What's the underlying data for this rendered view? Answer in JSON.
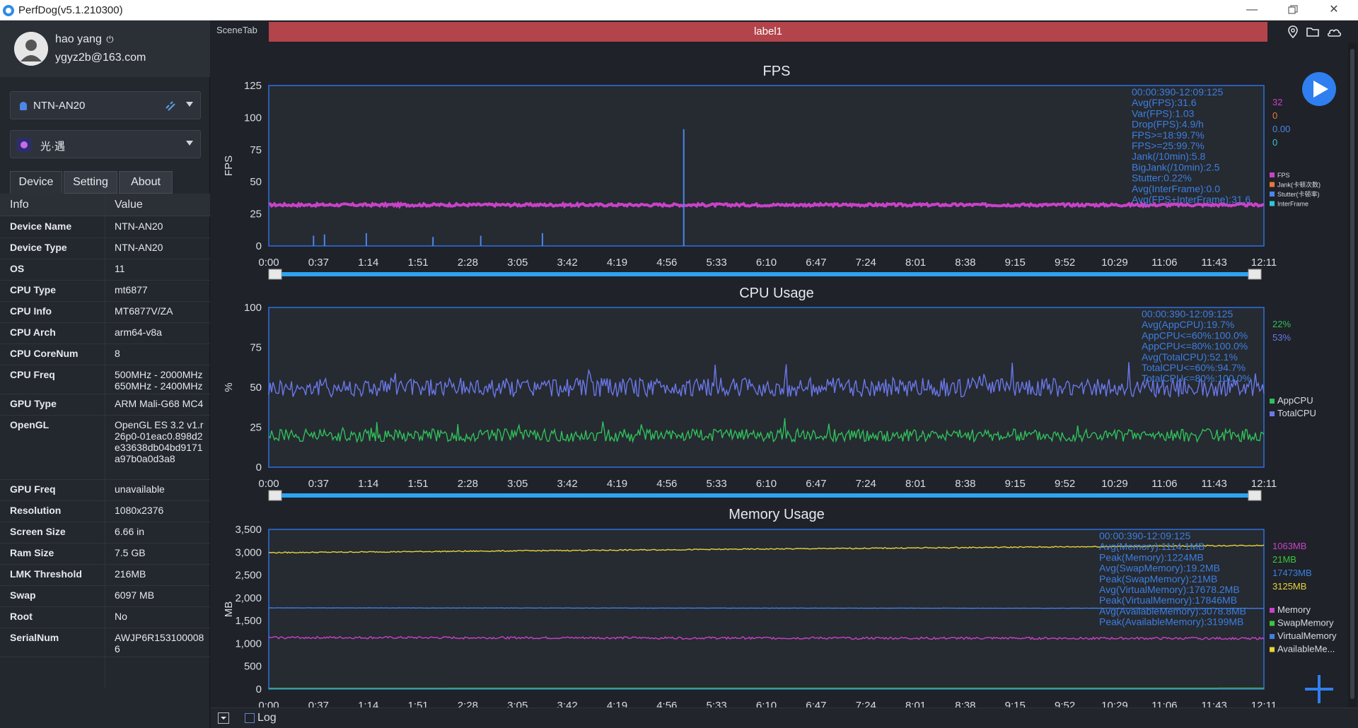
{
  "window": {
    "title": "PerfDog(v5.1.210300)",
    "minimize_icon": "minimize-icon",
    "restore_icon": "restore-icon",
    "close_icon": "close-icon"
  },
  "user": {
    "name": "hao yang",
    "email": "ygyz2b@163.com"
  },
  "device_select": {
    "value": "NTN-AN20"
  },
  "app_select": {
    "value": "光·遇"
  },
  "tabs": [
    {
      "label": "Device"
    },
    {
      "label": "Setting"
    },
    {
      "label": "About"
    }
  ],
  "info_table": {
    "headers": [
      "Info",
      "Value"
    ],
    "rows": [
      {
        "key": "Device Name",
        "value": "NTN-AN20"
      },
      {
        "key": "Device Type",
        "value": "NTN-AN20"
      },
      {
        "key": "OS",
        "value": "11"
      },
      {
        "key": "CPU Type",
        "value": "mt6877"
      },
      {
        "key": "CPU Info",
        "value": "MT6877V/ZA"
      },
      {
        "key": "CPU Arch",
        "value": "arm64-v8a"
      },
      {
        "key": "CPU CoreNum",
        "value": "8"
      },
      {
        "key": "CPU Freq",
        "value": "500MHz - 2000MHz 650MHz - 2400MHz"
      },
      {
        "key": "GPU Type",
        "value": "ARM Mali-G68 MC4"
      },
      {
        "key": "OpenGL",
        "value": "OpenGL ES 3.2 v1.r26p0-01eac0.898d2e33638db04bd9171a97b0a0d3a8"
      },
      {
        "key": "GPU Freq",
        "value": "unavailable"
      },
      {
        "key": "Resolution",
        "value": "1080x2376"
      },
      {
        "key": "Screen Size",
        "value": "6.66 in"
      },
      {
        "key": "Ram Size",
        "value": "7.5 GB"
      },
      {
        "key": "LMK Threshold",
        "value": "216MB"
      },
      {
        "key": "Swap",
        "value": "6097 MB"
      },
      {
        "key": "Root",
        "value": "No"
      },
      {
        "key": "SerialNum",
        "value": "AWJP6R1531000086"
      }
    ]
  },
  "scene": {
    "tab_label": "SceneTab",
    "label": "label1"
  },
  "bottom": {
    "log_label": "Log"
  },
  "colors": {
    "fps": "#c842c8",
    "jank": "#e8783a",
    "stutter": "#4c86e8",
    "interframe": "#2ec8d8",
    "appcpu": "#2fbf5a",
    "totalcpu": "#6a78e8",
    "memory": "#c842c8",
    "swap": "#3ec43e",
    "virtual": "#3d7fe0",
    "available": "#e8d23a",
    "stats_text": "#3d7fe0",
    "axis": "#2f6fe0",
    "slider": "#2ea3f2",
    "label_bar": "#b3444b"
  },
  "chart_data": [
    {
      "type": "line",
      "title": "FPS",
      "ylabel": "FPS",
      "ylim": [
        0,
        125
      ],
      "yticks": [
        0,
        25,
        50,
        75,
        100,
        125
      ],
      "xticks": [
        "0:00",
        "0:37",
        "1:14",
        "1:51",
        "2:28",
        "3:05",
        "3:42",
        "4:19",
        "4:56",
        "5:33",
        "6:10",
        "6:47",
        "7:24",
        "8:01",
        "8:38",
        "9:15",
        "9:52",
        "10:29",
        "11:06",
        "11:43",
        "12:11"
      ],
      "stats": [
        "00:00:390-12:09:125",
        "Avg(FPS):31.6",
        "Var(FPS):1.03",
        "Drop(FPS):4.9/h",
        "FPS>=18:99.7%",
        "FPS>=25:99.7%",
        "Jank(/10min):5.8",
        "BigJank(/10min):2.5",
        "Stutter:0.22%",
        "Avg(InterFrame):0.0",
        "Avg(FPS+InterFrame):31.6"
      ],
      "current_values": [
        {
          "text": "32",
          "color": "#c842c8"
        },
        {
          "text": "0",
          "color": "#e8783a"
        },
        {
          "text": "0.00",
          "color": "#4c86e8"
        },
        {
          "text": "0",
          "color": "#2ec8d8"
        }
      ],
      "legend": [
        {
          "name": "FPS",
          "color": "#c842c8"
        },
        {
          "name": "Jank(卡顿次数)",
          "color": "#e8783a"
        },
        {
          "name": "Stutter(卡顿率)",
          "color": "#4c86e8"
        },
        {
          "name": "InterFrame",
          "color": "#2ec8d8"
        }
      ],
      "series": [
        {
          "name": "FPS",
          "base": 32,
          "noise": 1,
          "color": "#c842c8"
        }
      ],
      "spikes": [
        {
          "x": 0.045,
          "value": 8
        },
        {
          "x": 0.056,
          "value": 9
        },
        {
          "x": 0.098,
          "value": 10
        },
        {
          "x": 0.165,
          "value": 7
        },
        {
          "x": 0.213,
          "value": 8
        },
        {
          "x": 0.275,
          "value": 10
        },
        {
          "x": 0.417,
          "value": 91
        }
      ]
    },
    {
      "type": "line",
      "title": "CPU Usage",
      "ylabel": "%",
      "ylim": [
        0,
        100
      ],
      "yticks": [
        0,
        25,
        50,
        75,
        100
      ],
      "xticks": [
        "0:00",
        "0:37",
        "1:14",
        "1:51",
        "2:28",
        "3:05",
        "3:42",
        "4:19",
        "4:56",
        "5:33",
        "6:10",
        "6:47",
        "7:24",
        "8:01",
        "8:38",
        "9:15",
        "9:52",
        "10:29",
        "11:06",
        "11:43",
        "12:11"
      ],
      "stats": [
        "00:00:390-12:09:125",
        "Avg(AppCPU):19.7%",
        "AppCPU<=60%:100.0%",
        "AppCPU<=80%:100.0%",
        "Avg(TotalCPU):52.1%",
        "TotalCPU<=60%:94.7%",
        "TotalCPU<=80%:100.0%"
      ],
      "current_values": [
        {
          "text": "22%",
          "color": "#2fbf5a"
        },
        {
          "text": "53%",
          "color": "#6a78e8"
        }
      ],
      "legend": [
        {
          "name": "AppCPU",
          "color": "#2fbf5a"
        },
        {
          "name": "TotalCPU",
          "color": "#6a78e8"
        }
      ],
      "series": [
        {
          "name": "TotalCPU",
          "base": 50,
          "noise": 6,
          "color": "#6a78e8"
        },
        {
          "name": "AppCPU",
          "base": 20,
          "noise": 4,
          "color": "#2fbf5a"
        }
      ]
    },
    {
      "type": "line",
      "title": "Memory Usage",
      "ylabel": "MB",
      "ylim": [
        0,
        3500
      ],
      "yticks": [
        0,
        500,
        1000,
        1500,
        2000,
        2500,
        3000,
        3500
      ],
      "ytick_labels": [
        "0",
        "500",
        "1,000",
        "1,500",
        "2,000",
        "2,500",
        "3,000",
        "3,500"
      ],
      "xticks": [
        "0:00",
        "0:37",
        "1:14",
        "1:51",
        "2:28",
        "3:05",
        "3:42",
        "4:19",
        "4:56",
        "5:33",
        "6:10",
        "6:47",
        "7:24",
        "8:01",
        "8:38",
        "9:15",
        "9:52",
        "10:29",
        "11:06",
        "11:43",
        "12:11"
      ],
      "stats": [
        "00:00:390-12:09:125",
        "Avg(Memory):1114.1MB",
        "Peak(Memory):1224MB",
        "Avg(SwapMemory):19.2MB",
        "Peak(SwapMemory):21MB",
        "Avg(VirtualMemory):17678.2MB",
        "Peak(VirtualMemory):17846MB",
        "Avg(AvailableMemory):3078.8MB",
        "Peak(AvailableMemory):3199MB"
      ],
      "current_values": [
        {
          "text": "1063MB",
          "color": "#c842c8"
        },
        {
          "text": "21MB",
          "color": "#3ec43e"
        },
        {
          "text": "17473MB",
          "color": "#3d7fe0"
        },
        {
          "text": "3125MB",
          "color": "#e8d23a"
        }
      ],
      "legend": [
        {
          "name": "Memory",
          "color": "#c842c8"
        },
        {
          "name": "SwapMemory",
          "color": "#3ec43e"
        },
        {
          "name": "VirtualMemory",
          "color": "#3d7fe0"
        },
        {
          "name": "AvailableMe...",
          "color": "#e8d23a"
        }
      ],
      "series": [
        {
          "name": "AvailableMemory",
          "start": 2990,
          "end": 3150,
          "noise": 12,
          "color": "#e8d23a"
        },
        {
          "name": "VirtualMemory",
          "start": 1780,
          "end": 1770,
          "noise": 3,
          "color": "#3d7fe0"
        },
        {
          "name": "Memory",
          "start": 1130,
          "end": 1110,
          "noise": 25,
          "color": "#c842c8"
        },
        {
          "name": "SwapMemory",
          "start": 19,
          "end": 21,
          "noise": 0,
          "color": "#3ec43e"
        }
      ]
    }
  ]
}
